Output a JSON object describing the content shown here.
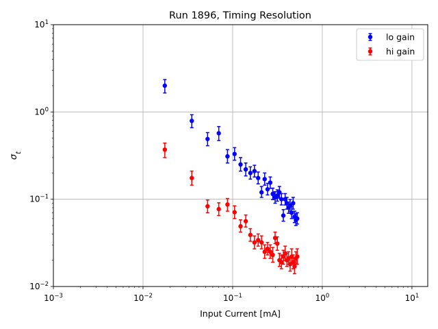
{
  "chart_data": {
    "type": "scatter",
    "title": "Run 1896, Timing Resolution",
    "xlabel": "Input Current [mA]",
    "ylabel": "σ_t",
    "xscale": "log",
    "yscale": "log",
    "xlim": [
      0.001,
      15
    ],
    "ylim": [
      0.01,
      10
    ],
    "grid": true,
    "legend_position": "top-right",
    "x_ticks": [
      {
        "value": 0.001,
        "base": "10",
        "exp": "−3"
      },
      {
        "value": 0.01,
        "base": "10",
        "exp": "−2"
      },
      {
        "value": 0.1,
        "base": "10",
        "exp": "−1"
      },
      {
        "value": 1,
        "base": "10",
        "exp": "0"
      },
      {
        "value": 10,
        "base": "10",
        "exp": "1"
      }
    ],
    "y_ticks": [
      {
        "value": 0.01,
        "base": "10",
        "exp": "−2"
      },
      {
        "value": 0.1,
        "base": "10",
        "exp": "−1"
      },
      {
        "value": 1,
        "base": "10",
        "exp": "0"
      },
      {
        "value": 10,
        "base": "10",
        "exp": "1"
      }
    ],
    "series": [
      {
        "name": "lo gain",
        "color": "#0000ff",
        "points": [
          {
            "x": 0.0175,
            "y": 2.0,
            "lo": 1.65,
            "hi": 2.35
          },
          {
            "x": 0.035,
            "y": 0.79,
            "lo": 0.66,
            "hi": 0.93
          },
          {
            "x": 0.0525,
            "y": 0.49,
            "lo": 0.41,
            "hi": 0.58
          },
          {
            "x": 0.07,
            "y": 0.57,
            "lo": 0.47,
            "hi": 0.68
          },
          {
            "x": 0.0875,
            "y": 0.31,
            "lo": 0.26,
            "hi": 0.37
          },
          {
            "x": 0.105,
            "y": 0.33,
            "lo": 0.28,
            "hi": 0.39
          },
          {
            "x": 0.1225,
            "y": 0.25,
            "lo": 0.21,
            "hi": 0.3
          },
          {
            "x": 0.14,
            "y": 0.22,
            "lo": 0.185,
            "hi": 0.26
          },
          {
            "x": 0.1575,
            "y": 0.2,
            "lo": 0.17,
            "hi": 0.235
          },
          {
            "x": 0.175,
            "y": 0.21,
            "lo": 0.18,
            "hi": 0.245
          },
          {
            "x": 0.1925,
            "y": 0.175,
            "lo": 0.15,
            "hi": 0.205
          },
          {
            "x": 0.21,
            "y": 0.12,
            "lo": 0.105,
            "hi": 0.14
          },
          {
            "x": 0.2275,
            "y": 0.17,
            "lo": 0.145,
            "hi": 0.2
          },
          {
            "x": 0.245,
            "y": 0.13,
            "lo": 0.112,
            "hi": 0.152
          },
          {
            "x": 0.2625,
            "y": 0.155,
            "lo": 0.133,
            "hi": 0.18
          },
          {
            "x": 0.28,
            "y": 0.115,
            "lo": 0.099,
            "hi": 0.134
          },
          {
            "x": 0.2975,
            "y": 0.105,
            "lo": 0.09,
            "hi": 0.122
          },
          {
            "x": 0.315,
            "y": 0.11,
            "lo": 0.095,
            "hi": 0.128
          },
          {
            "x": 0.3325,
            "y": 0.12,
            "lo": 0.103,
            "hi": 0.14
          },
          {
            "x": 0.35,
            "y": 0.1,
            "lo": 0.086,
            "hi": 0.116
          },
          {
            "x": 0.3675,
            "y": 0.065,
            "lo": 0.056,
            "hi": 0.076
          },
          {
            "x": 0.385,
            "y": 0.1,
            "lo": 0.086,
            "hi": 0.116
          },
          {
            "x": 0.4025,
            "y": 0.09,
            "lo": 0.077,
            "hi": 0.105
          },
          {
            "x": 0.42,
            "y": 0.08,
            "lo": 0.069,
            "hi": 0.093
          },
          {
            "x": 0.4375,
            "y": 0.085,
            "lo": 0.073,
            "hi": 0.099
          },
          {
            "x": 0.455,
            "y": 0.07,
            "lo": 0.06,
            "hi": 0.082
          },
          {
            "x": 0.4725,
            "y": 0.09,
            "lo": 0.077,
            "hi": 0.105
          },
          {
            "x": 0.49,
            "y": 0.063,
            "lo": 0.054,
            "hi": 0.073
          },
          {
            "x": 0.5075,
            "y": 0.058,
            "lo": 0.05,
            "hi": 0.068
          },
          {
            "x": 0.525,
            "y": 0.06,
            "lo": 0.052,
            "hi": 0.07
          }
        ]
      },
      {
        "name": "hi gain",
        "color": "#ff0000",
        "points": [
          {
            "x": 0.0175,
            "y": 0.37,
            "lo": 0.3,
            "hi": 0.44
          },
          {
            "x": 0.035,
            "y": 0.175,
            "lo": 0.145,
            "hi": 0.21
          },
          {
            "x": 0.0525,
            "y": 0.083,
            "lo": 0.07,
            "hi": 0.098
          },
          {
            "x": 0.07,
            "y": 0.077,
            "lo": 0.065,
            "hi": 0.091
          },
          {
            "x": 0.0875,
            "y": 0.087,
            "lo": 0.073,
            "hi": 0.102
          },
          {
            "x": 0.105,
            "y": 0.071,
            "lo": 0.06,
            "hi": 0.084
          },
          {
            "x": 0.1225,
            "y": 0.049,
            "lo": 0.042,
            "hi": 0.058
          },
          {
            "x": 0.14,
            "y": 0.056,
            "lo": 0.048,
            "hi": 0.066
          },
          {
            "x": 0.1575,
            "y": 0.039,
            "lo": 0.033,
            "hi": 0.046
          },
          {
            "x": 0.175,
            "y": 0.032,
            "lo": 0.027,
            "hi": 0.038
          },
          {
            "x": 0.1925,
            "y": 0.034,
            "lo": 0.029,
            "hi": 0.04
          },
          {
            "x": 0.21,
            "y": 0.032,
            "lo": 0.027,
            "hi": 0.038
          },
          {
            "x": 0.2275,
            "y": 0.025,
            "lo": 0.021,
            "hi": 0.03
          },
          {
            "x": 0.245,
            "y": 0.027,
            "lo": 0.023,
            "hi": 0.032
          },
          {
            "x": 0.2625,
            "y": 0.025,
            "lo": 0.021,
            "hi": 0.03
          },
          {
            "x": 0.28,
            "y": 0.023,
            "lo": 0.019,
            "hi": 0.028
          },
          {
            "x": 0.2975,
            "y": 0.036,
            "lo": 0.031,
            "hi": 0.042
          },
          {
            "x": 0.315,
            "y": 0.031,
            "lo": 0.026,
            "hi": 0.037
          },
          {
            "x": 0.3325,
            "y": 0.02,
            "lo": 0.017,
            "hi": 0.024
          },
          {
            "x": 0.35,
            "y": 0.019,
            "lo": 0.016,
            "hi": 0.023
          },
          {
            "x": 0.3675,
            "y": 0.022,
            "lo": 0.018,
            "hi": 0.026
          },
          {
            "x": 0.385,
            "y": 0.024,
            "lo": 0.02,
            "hi": 0.029
          },
          {
            "x": 0.4025,
            "y": 0.02,
            "lo": 0.017,
            "hi": 0.024
          },
          {
            "x": 0.42,
            "y": 0.021,
            "lo": 0.018,
            "hi": 0.025
          },
          {
            "x": 0.4375,
            "y": 0.018,
            "lo": 0.015,
            "hi": 0.022
          },
          {
            "x": 0.455,
            "y": 0.022,
            "lo": 0.018,
            "hi": 0.027
          },
          {
            "x": 0.4725,
            "y": 0.019,
            "lo": 0.016,
            "hi": 0.023
          },
          {
            "x": 0.49,
            "y": 0.017,
            "lo": 0.014,
            "hi": 0.021
          },
          {
            "x": 0.5075,
            "y": 0.021,
            "lo": 0.018,
            "hi": 0.025
          },
          {
            "x": 0.525,
            "y": 0.022,
            "lo": 0.018,
            "hi": 0.027
          }
        ]
      }
    ]
  }
}
